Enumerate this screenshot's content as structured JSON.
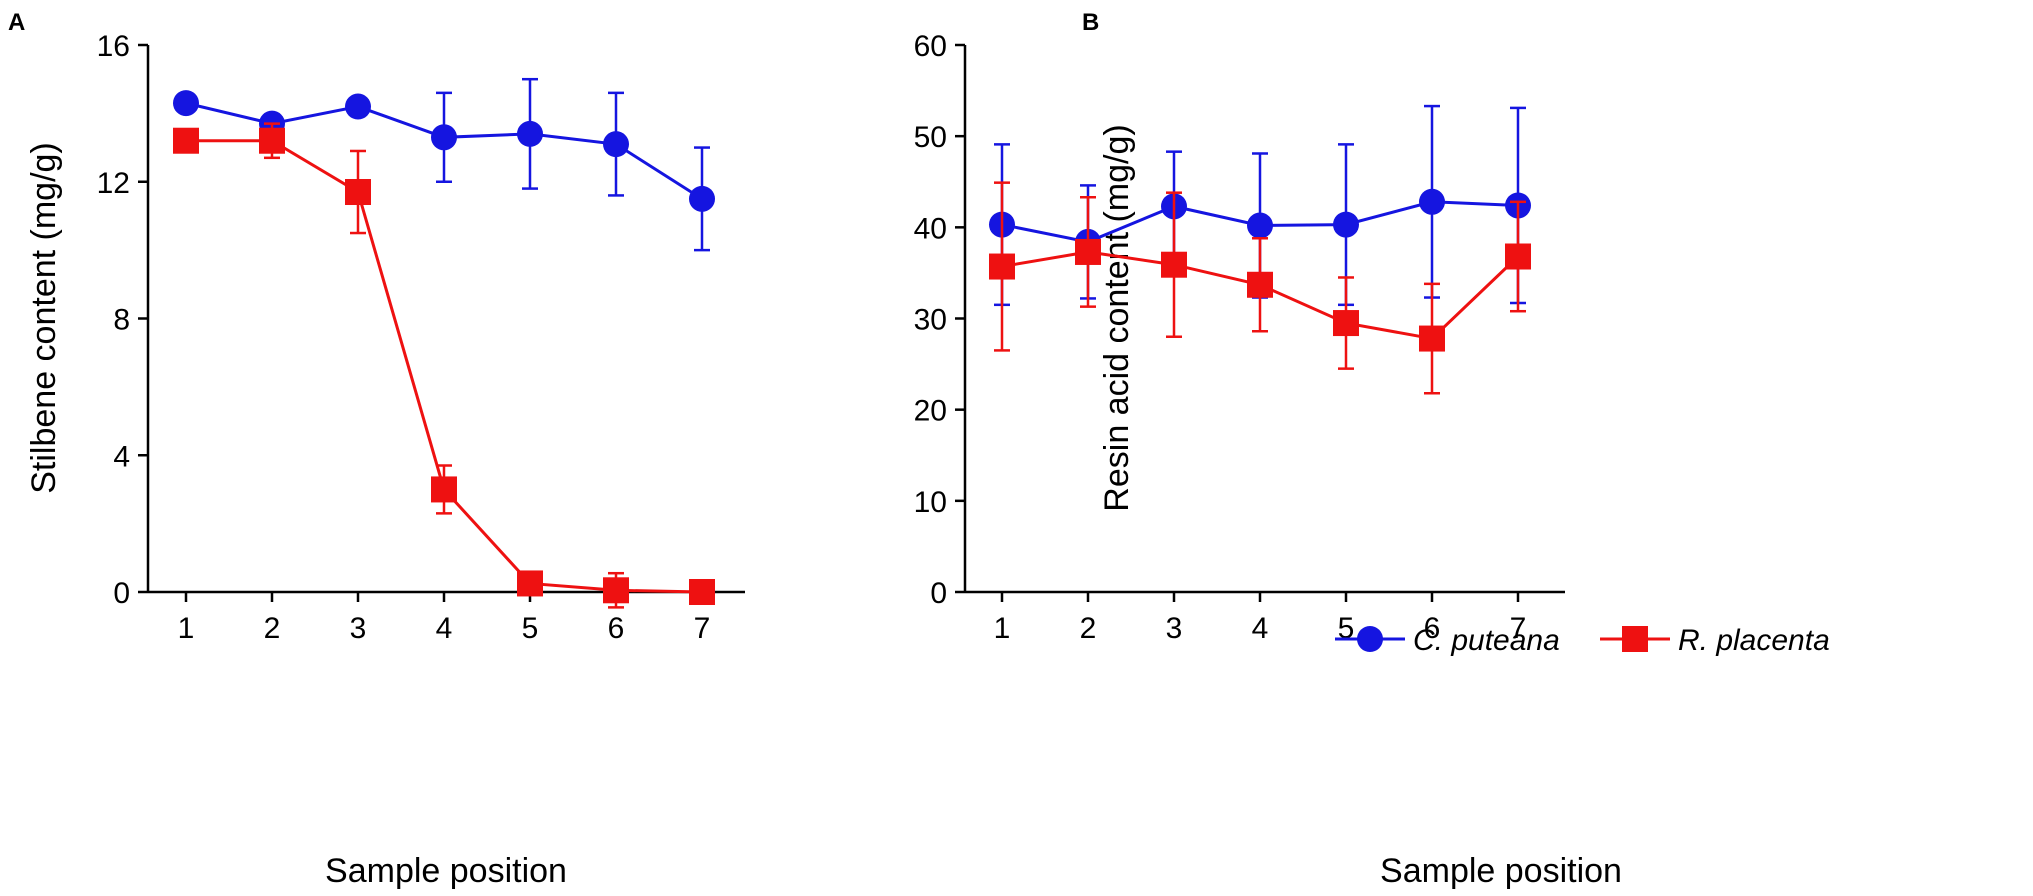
{
  "chart_data": [
    {
      "panel": "A",
      "type": "line",
      "xlabel": "Sample position",
      "ylabel": "Stilbene content (mg/g)",
      "x": [
        1,
        2,
        3,
        4,
        5,
        6,
        7
      ],
      "xticks": [
        "1",
        "2",
        "3",
        "4",
        "5",
        "6",
        "7"
      ],
      "ylim": [
        0,
        16
      ],
      "yticks": [
        "0",
        "4",
        "8",
        "12",
        "16"
      ],
      "series": [
        {
          "name": "C. puteana",
          "color": "#1515e0",
          "marker": "circle",
          "values": [
            14.3,
            13.7,
            14.2,
            13.3,
            13.4,
            13.1,
            11.5
          ],
          "errors": [
            0.0,
            0.0,
            0.0,
            1.3,
            1.6,
            1.5,
            1.5
          ]
        },
        {
          "name": "R. placenta",
          "color": "#ee1111",
          "marker": "square",
          "values": [
            13.2,
            13.2,
            11.7,
            3.0,
            0.25,
            0.05,
            0.0
          ],
          "errors": [
            0.0,
            0.5,
            1.2,
            0.7,
            0.0,
            0.5,
            0.0
          ]
        }
      ]
    },
    {
      "panel": "B",
      "type": "line",
      "xlabel": "Sample position",
      "ylabel": "Resin acid content (mg/g)",
      "x": [
        1,
        2,
        3,
        4,
        5,
        6,
        7
      ],
      "xticks": [
        "1",
        "2",
        "3",
        "4",
        "5",
        "6",
        "7"
      ],
      "ylim": [
        0,
        60
      ],
      "yticks": [
        "0",
        "10",
        "20",
        "30",
        "40",
        "50",
        "60"
      ],
      "legend": {
        "position": "center-left"
      },
      "series": [
        {
          "name": "C. puteana",
          "color": "#1515e0",
          "marker": "circle",
          "values": [
            40.3,
            38.4,
            42.3,
            40.2,
            40.3,
            42.8,
            42.4
          ],
          "errors": [
            8.8,
            6.2,
            6.0,
            7.9,
            8.8,
            10.5,
            10.7
          ]
        },
        {
          "name": "R. placenta",
          "color": "#ee1111",
          "marker": "square",
          "values": [
            35.7,
            37.3,
            35.9,
            33.7,
            29.5,
            27.8,
            36.8
          ],
          "errors": [
            9.2,
            6.0,
            7.9,
            5.1,
            5.0,
            6.0,
            6.0
          ]
        }
      ]
    }
  ]
}
